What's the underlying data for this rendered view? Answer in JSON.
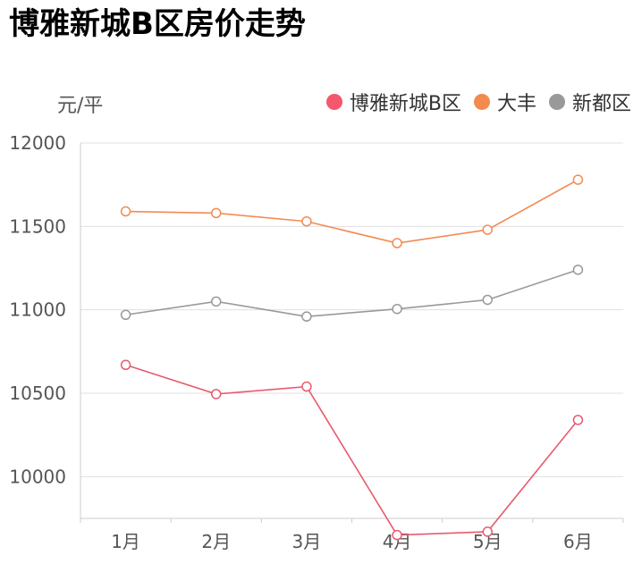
{
  "title": "博雅新城B区房价走势",
  "chart_data": {
    "type": "line",
    "ylabel": "元/平",
    "categories": [
      "1月",
      "2月",
      "3月",
      "4月",
      "5月",
      "6月"
    ],
    "ylim": [
      9750,
      12000
    ],
    "yticks": [
      "10000",
      "10500",
      "11000",
      "11500",
      "12000"
    ],
    "grid": true,
    "legend_position": "top-right",
    "series": [
      {
        "name": "博雅新城B区",
        "color": "#e85a6e",
        "values": [
          10670,
          10495,
          10540,
          9650,
          9670,
          10340
        ]
      },
      {
        "name": "大丰",
        "color": "#f38a52",
        "values": [
          11590,
          11580,
          11530,
          11400,
          11480,
          11780
        ]
      },
      {
        "name": "新都区",
        "color": "#999999",
        "values": [
          10970,
          11050,
          10960,
          11005,
          11060,
          11240
        ]
      }
    ]
  }
}
